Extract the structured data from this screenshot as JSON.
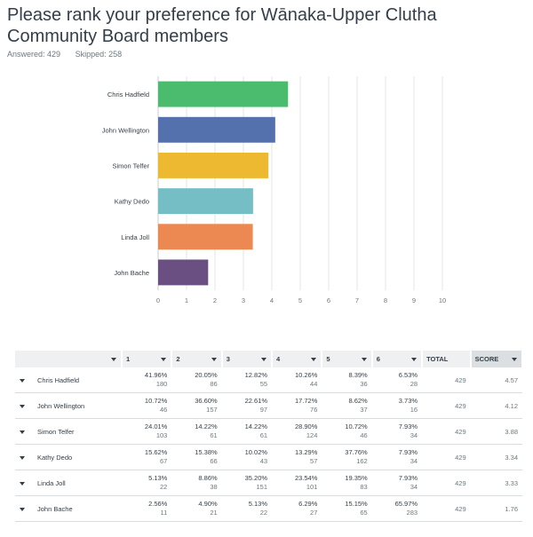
{
  "title": "Please rank your preference for Wānaka-Upper Clutha Community Board members",
  "answered_label": "Answered: 429",
  "skipped_label": "Skipped: 258",
  "chart_data": {
    "type": "bar",
    "orientation": "horizontal",
    "categories": [
      "Chris Hadfield",
      "John Wellington",
      "Simon Telfer",
      "Kathy Dedo",
      "Linda Joll",
      "John Bache"
    ],
    "values": [
      4.57,
      4.12,
      3.88,
      3.34,
      3.33,
      1.76
    ],
    "colors": [
      "#4bbb6e",
      "#5470ad",
      "#ecb930",
      "#75bec6",
      "#ec8851",
      "#6a4f82"
    ],
    "xlim": [
      0,
      10
    ],
    "xticks": [
      "0",
      "1",
      "2",
      "3",
      "4",
      "5",
      "6",
      "7",
      "8",
      "9",
      "10"
    ],
    "grid": true,
    "title": "",
    "xlabel": "",
    "ylabel": ""
  },
  "table": {
    "headers": [
      "1",
      "2",
      "3",
      "4",
      "5",
      "6",
      "TOTAL",
      "SCORE"
    ],
    "rows": [
      {
        "name": "Chris Hadfield",
        "cells": [
          [
            "41.96%",
            "180"
          ],
          [
            "20.05%",
            "86"
          ],
          [
            "12.82%",
            "55"
          ],
          [
            "10.26%",
            "44"
          ],
          [
            "8.39%",
            "36"
          ],
          [
            "6.53%",
            "28"
          ]
        ],
        "total": "429",
        "score": "4.57"
      },
      {
        "name": "John Wellington",
        "cells": [
          [
            "10.72%",
            "46"
          ],
          [
            "36.60%",
            "157"
          ],
          [
            "22.61%",
            "97"
          ],
          [
            "17.72%",
            "76"
          ],
          [
            "8.62%",
            "37"
          ],
          [
            "3.73%",
            "16"
          ]
        ],
        "total": "429",
        "score": "4.12"
      },
      {
        "name": "Simon Telfer",
        "cells": [
          [
            "24.01%",
            "103"
          ],
          [
            "14.22%",
            "61"
          ],
          [
            "14.22%",
            "61"
          ],
          [
            "28.90%",
            "124"
          ],
          [
            "10.72%",
            "46"
          ],
          [
            "7.93%",
            "34"
          ]
        ],
        "total": "429",
        "score": "3.88"
      },
      {
        "name": "Kathy Dedo",
        "cells": [
          [
            "15.62%",
            "67"
          ],
          [
            "15.38%",
            "66"
          ],
          [
            "10.02%",
            "43"
          ],
          [
            "13.29%",
            "57"
          ],
          [
            "37.76%",
            "162"
          ],
          [
            "7.93%",
            "34"
          ]
        ],
        "total": "429",
        "score": "3.34"
      },
      {
        "name": "Linda Joll",
        "cells": [
          [
            "5.13%",
            "22"
          ],
          [
            "8.86%",
            "38"
          ],
          [
            "35.20%",
            "151"
          ],
          [
            "23.54%",
            "101"
          ],
          [
            "19.35%",
            "83"
          ],
          [
            "7.93%",
            "34"
          ]
        ],
        "total": "429",
        "score": "3.33"
      },
      {
        "name": "John Bache",
        "cells": [
          [
            "2.56%",
            "11"
          ],
          [
            "4.90%",
            "21"
          ],
          [
            "5.13%",
            "22"
          ],
          [
            "6.29%",
            "27"
          ],
          [
            "15.15%",
            "65"
          ],
          [
            "65.97%",
            "283"
          ]
        ],
        "total": "429",
        "score": "1.76"
      }
    ]
  }
}
